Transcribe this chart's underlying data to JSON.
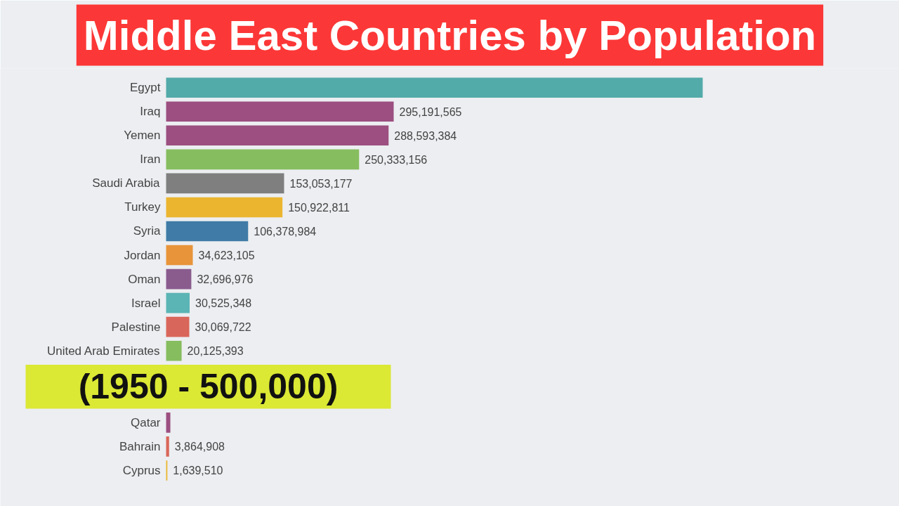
{
  "chart_data": {
    "type": "bar",
    "orientation": "horizontal",
    "title": "Middle East Countries by Population",
    "subtitle": "(1950 - 500,000)",
    "categories": [
      "Egypt",
      "Iraq",
      "Yemen",
      "Iran",
      "Saudi Arabia",
      "Turkey",
      "Syria",
      "Jordan",
      "Oman",
      "Israel",
      "Palestine",
      "United Arab Emirates",
      null,
      null,
      "Qatar",
      "Bahrain",
      "Cyprus"
    ],
    "values": [
      696000000,
      295191565,
      288593384,
      250333156,
      153053177,
      150922811,
      106378984,
      34623105,
      32696976,
      30525348,
      30069722,
      20125393,
      null,
      null,
      5500000,
      3864908,
      1639510
    ],
    "colors": [
      "#52aaa9",
      "#9c4f80",
      "#9c4f80",
      "#86bd5f",
      "#7f7f7f",
      "#ebb52f",
      "#3f7ba6",
      "#e8943a",
      "#8a5c8e",
      "#5ab5b4",
      "#d9665a",
      "#86bd5f",
      null,
      null,
      "#9c4f80",
      "#d9665a",
      "#ebb52f"
    ],
    "value_labels": [
      null,
      "295,191,565",
      "288,593,384",
      "250,333,156",
      "153,053,177",
      "150,922,811",
      "106,378,984",
      "34,623,105",
      "32,696,976",
      "30,525,348",
      "30,069,722",
      "20,125,393",
      null,
      null,
      null,
      "3,864,908",
      "1,639,510"
    ]
  }
}
